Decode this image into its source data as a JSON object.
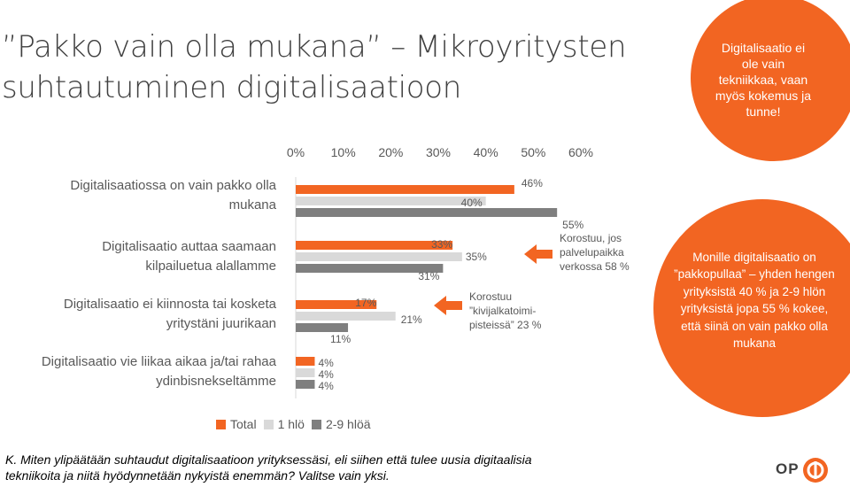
{
  "title": {
    "line1": "Pakko vain olla mukana”– Mikroyritysten",
    "line1_display": "”Pakko vain olla mukana” – Mikroyritysten",
    "line2": "suhtautuminen digitalisaatioon"
  },
  "callouts": {
    "top_circle": "Digitalisaatio ei ole vain tekniikkaa, vaan myös kokemus ja tunne!",
    "right_circle": "Monille digitalisaatio on ”pakkopullaa” – yhden hengen yrityksistä 40 % ja 2-9 hlön yrityksistä jopa 55 % kokee, että siinä on vain pakko olla mukana",
    "arrow1": "Korostuu, jos palvelupaikka verkossa 58 %",
    "arrow2": "Korostuu ”kivijalkatoimi-pisteissä” 23 %"
  },
  "colors": {
    "total": "#f26522",
    "one_person": "#d9d9d9",
    "small_firm": "#7f7f7f",
    "accent": "#f26522"
  },
  "question": "K. Miten ylipäätään suhtaudut digitalisaatioon yrityksessäsi, eli siihen että tulee uusia digitaalisia tekniikoita ja niitä hyödynnetään nykyistä enemmän? Valitse vain yksi.",
  "logo": {
    "text": "OP"
  },
  "chart_data": {
    "type": "bar",
    "orientation": "horizontal",
    "xlim": [
      0,
      60
    ],
    "ticks": [
      "0%",
      "10%",
      "20%",
      "30%",
      "40%",
      "50%",
      "60%"
    ],
    "tick_values": [
      0,
      10,
      20,
      30,
      40,
      50,
      60
    ],
    "axis_position": "top",
    "grid": false,
    "legend_position": "bottom",
    "categories": [
      "Digitalisaatiossa on vain pakko olla mukana",
      "Digitalisaatio auttaa saamaan kilpailuetua alallamme",
      "Digitalisaatio ei kiinnosta tai kosketa yritystäni juurikaan",
      "Digitalisaatio vie liikaa aikaa ja/tai rahaa ydinbisnekseltämme"
    ],
    "category_lines": [
      [
        "Digitalisaatiossa on vain pakko olla",
        "mukana"
      ],
      [
        "Digitalisaatio auttaa saamaan",
        "kilpailuetua alallamme"
      ],
      [
        "Digitalisaatio ei kiinnosta tai kosketa",
        "yritystäni juurikaan"
      ],
      [
        "Digitalisaatio vie liikaa aikaa ja/tai rahaa",
        "ydinbisnekseltämme"
      ]
    ],
    "series": [
      {
        "name": "Total",
        "values": [
          46,
          33,
          17,
          4
        ],
        "labels": [
          "46%",
          "33%",
          "17%",
          "4%"
        ]
      },
      {
        "name": "1 hlö",
        "values": [
          40,
          35,
          21,
          4
        ],
        "labels": [
          "40%",
          "35%",
          "21%",
          "4%"
        ]
      },
      {
        "name": "2-9 hlöä",
        "values": [
          55,
          31,
          11,
          4
        ],
        "labels": [
          "55%",
          "31%",
          "11%",
          "4%"
        ]
      }
    ]
  }
}
